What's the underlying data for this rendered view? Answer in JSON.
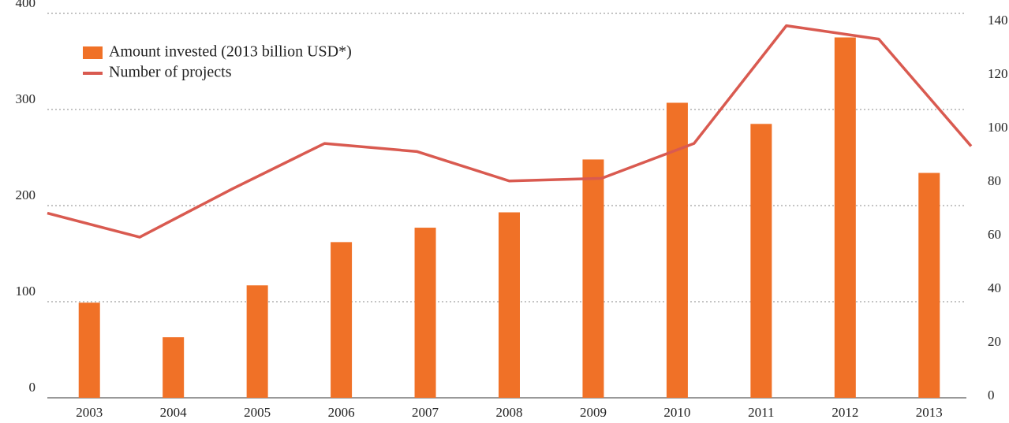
{
  "chart_data": {
    "type": "bar_line",
    "categories": [
      "2003",
      "2004",
      "2005",
      "2006",
      "2007",
      "2008",
      "2009",
      "2010",
      "2011",
      "2012",
      "2013"
    ],
    "series": [
      {
        "name": "Amount invested (2013 billion USD*)",
        "color": "#f07127",
        "type": "bar",
        "values": [
          99,
          63,
          117,
          162,
          177,
          193,
          248,
          307,
          285,
          375,
          234
        ]
      },
      {
        "name": "Number of projects",
        "color": "#d95a50",
        "type": "line",
        "axis": "y2",
        "values": [
          69,
          60,
          78,
          95,
          92,
          81,
          82,
          95,
          139,
          134,
          94
        ]
      }
    ],
    "ylim": [
      0,
      400
    ],
    "yticks": [
      0,
      100,
      200,
      300,
      400
    ],
    "y2lim": [
      0,
      143.6
    ],
    "y2ticks": [
      0,
      20,
      40,
      60,
      80,
      100,
      120,
      140
    ],
    "grid": true,
    "legend": "top-left"
  }
}
